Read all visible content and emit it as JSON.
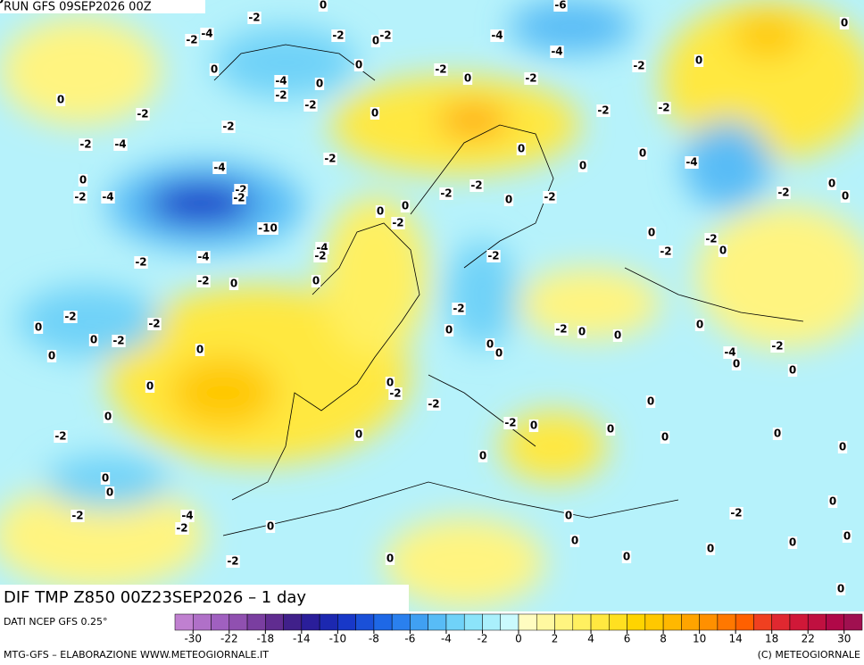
{
  "header": {
    "run": "RUN GFS 09SEP2026 00Z"
  },
  "map": {
    "contour_labels": [
      -2,
      0,
      -6,
      -2,
      -4,
      -2,
      0,
      -2,
      -4,
      0,
      0,
      -4,
      0,
      0,
      -2,
      0,
      -2,
      -4,
      -2,
      0,
      -2,
      -2,
      0,
      -2,
      -2,
      -2,
      0,
      -2,
      -2,
      -4,
      0,
      0,
      -2,
      0,
      -4,
      -4,
      0,
      -2,
      -4,
      -2,
      -2,
      0,
      -2,
      -2,
      0,
      -2,
      -2,
      0,
      0,
      0,
      -2,
      -10,
      0,
      -2,
      0,
      -4,
      -2,
      -2,
      -4,
      -2,
      -2,
      -2,
      0,
      0,
      0,
      -2,
      -2,
      0,
      -2,
      0,
      0,
      -2,
      0,
      -2,
      0,
      0,
      0,
      -2,
      0,
      0,
      -4,
      0,
      0,
      0,
      0,
      -2,
      -2,
      0,
      0,
      -2,
      0,
      -2,
      0,
      0,
      0,
      0,
      0,
      0,
      0,
      0,
      0,
      -2,
      -4,
      0,
      -2,
      -2,
      0,
      0,
      0,
      0,
      0,
      -2,
      0,
      0,
      0,
      0,
      0
    ]
  },
  "footer": {
    "title": "DIF TMP Z850 00Z23SEP2026 – 1 day",
    "source": "DATI NCEP GFS 0.25°",
    "credit": "MTG-GFS – ELABORAZIONE WWW.METEOGIORNALE.IT",
    "copyright": "(C) METEOGIORNALE"
  },
  "colorbar": {
    "colors": [
      "#c080d0",
      "#b070c8",
      "#a060c0",
      "#9050b0",
      "#7a3ea0",
      "#602c90",
      "#40208a",
      "#2a1e9a",
      "#1c28b0",
      "#1838c8",
      "#1a50d8",
      "#1e68e6",
      "#2a80ee",
      "#40a0f2",
      "#58bcf6",
      "#70d2f8",
      "#8ce4fa",
      "#aaf0fc",
      "#cafafe",
      "#fffcc0",
      "#fff8a0",
      "#fff480",
      "#fff060",
      "#ffe840",
      "#ffe020",
      "#ffd400",
      "#ffc800",
      "#ffb800",
      "#ffa400",
      "#ff9000",
      "#ff7800",
      "#ff6000",
      "#f04020",
      "#e02830",
      "#d01838",
      "#c01040",
      "#b00848",
      "#a01050"
    ],
    "ticks": [
      -30,
      -22,
      -18,
      -14,
      -10,
      -8,
      -6,
      -4,
      -2,
      0,
      2,
      4,
      6,
      8,
      10,
      14,
      18,
      22,
      30
    ]
  }
}
